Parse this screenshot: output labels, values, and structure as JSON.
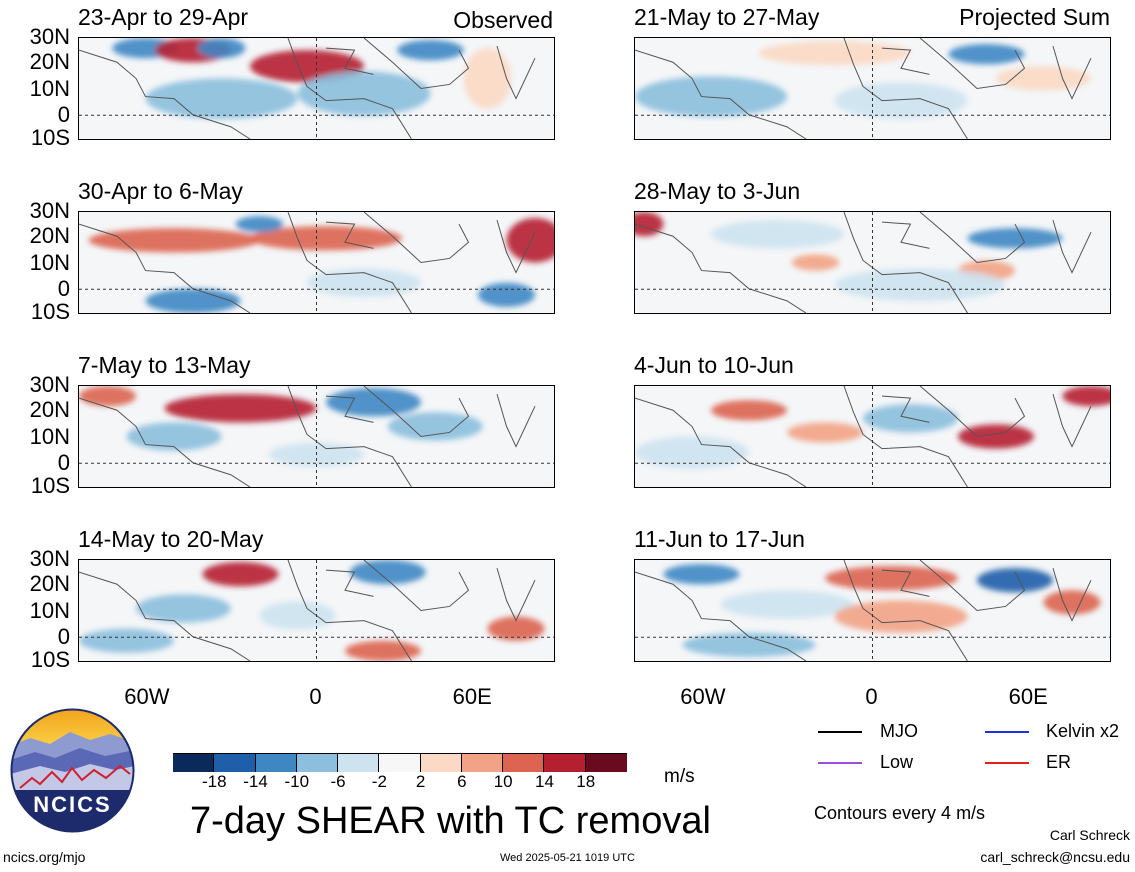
{
  "panels_left": [
    {
      "title": "23-Apr to 29-Apr"
    },
    {
      "title": "30-Apr to 6-May"
    },
    {
      "title": "7-May to 13-May"
    },
    {
      "title": "14-May to 20-May"
    }
  ],
  "panels_right": [
    {
      "title": "21-May to 27-May"
    },
    {
      "title": "28-May to 3-Jun"
    },
    {
      "title": "4-Jun to 10-Jun"
    },
    {
      "title": "11-Jun to 17-Jun"
    }
  ],
  "tags": {
    "observed": "Observed",
    "projected": "Projected Sum"
  },
  "lat_labels": [
    "30N",
    "20N",
    "10N",
    "0",
    "10S"
  ],
  "lon_labels": [
    "60W",
    "0",
    "60E"
  ],
  "colorbar": {
    "colors": [
      "#0b2a5c",
      "#1f5ea8",
      "#3f87c3",
      "#8bbfdd",
      "#cde3f0",
      "#f7f7f7",
      "#fbd9c4",
      "#f2a385",
      "#dc6450",
      "#b52030",
      "#6a0a1f"
    ],
    "labels": [
      "-18",
      "-14",
      "-10",
      "-6",
      "-2",
      "2",
      "6",
      "10",
      "14",
      "18"
    ],
    "unit": "m/s"
  },
  "legend": [
    {
      "label": "MJO",
      "color": "#000000"
    },
    {
      "label": "Kelvin x2",
      "color": "#1f2fd6"
    },
    {
      "label": "Low",
      "color": "#9b4de0"
    },
    {
      "label": "ER",
      "color": "#e0221f"
    }
  ],
  "contour_note": "Contours every 4 m/s",
  "main_title": "7-day SHEAR with TC removal",
  "logo_text": "NCICS",
  "footer": {
    "url": "ncics.org/mjo",
    "timestamp": "Wed 2025-05-21 1019 UTC",
    "author": "Carl Schreck",
    "email": "carl_schreck@ncsu.edu"
  }
}
